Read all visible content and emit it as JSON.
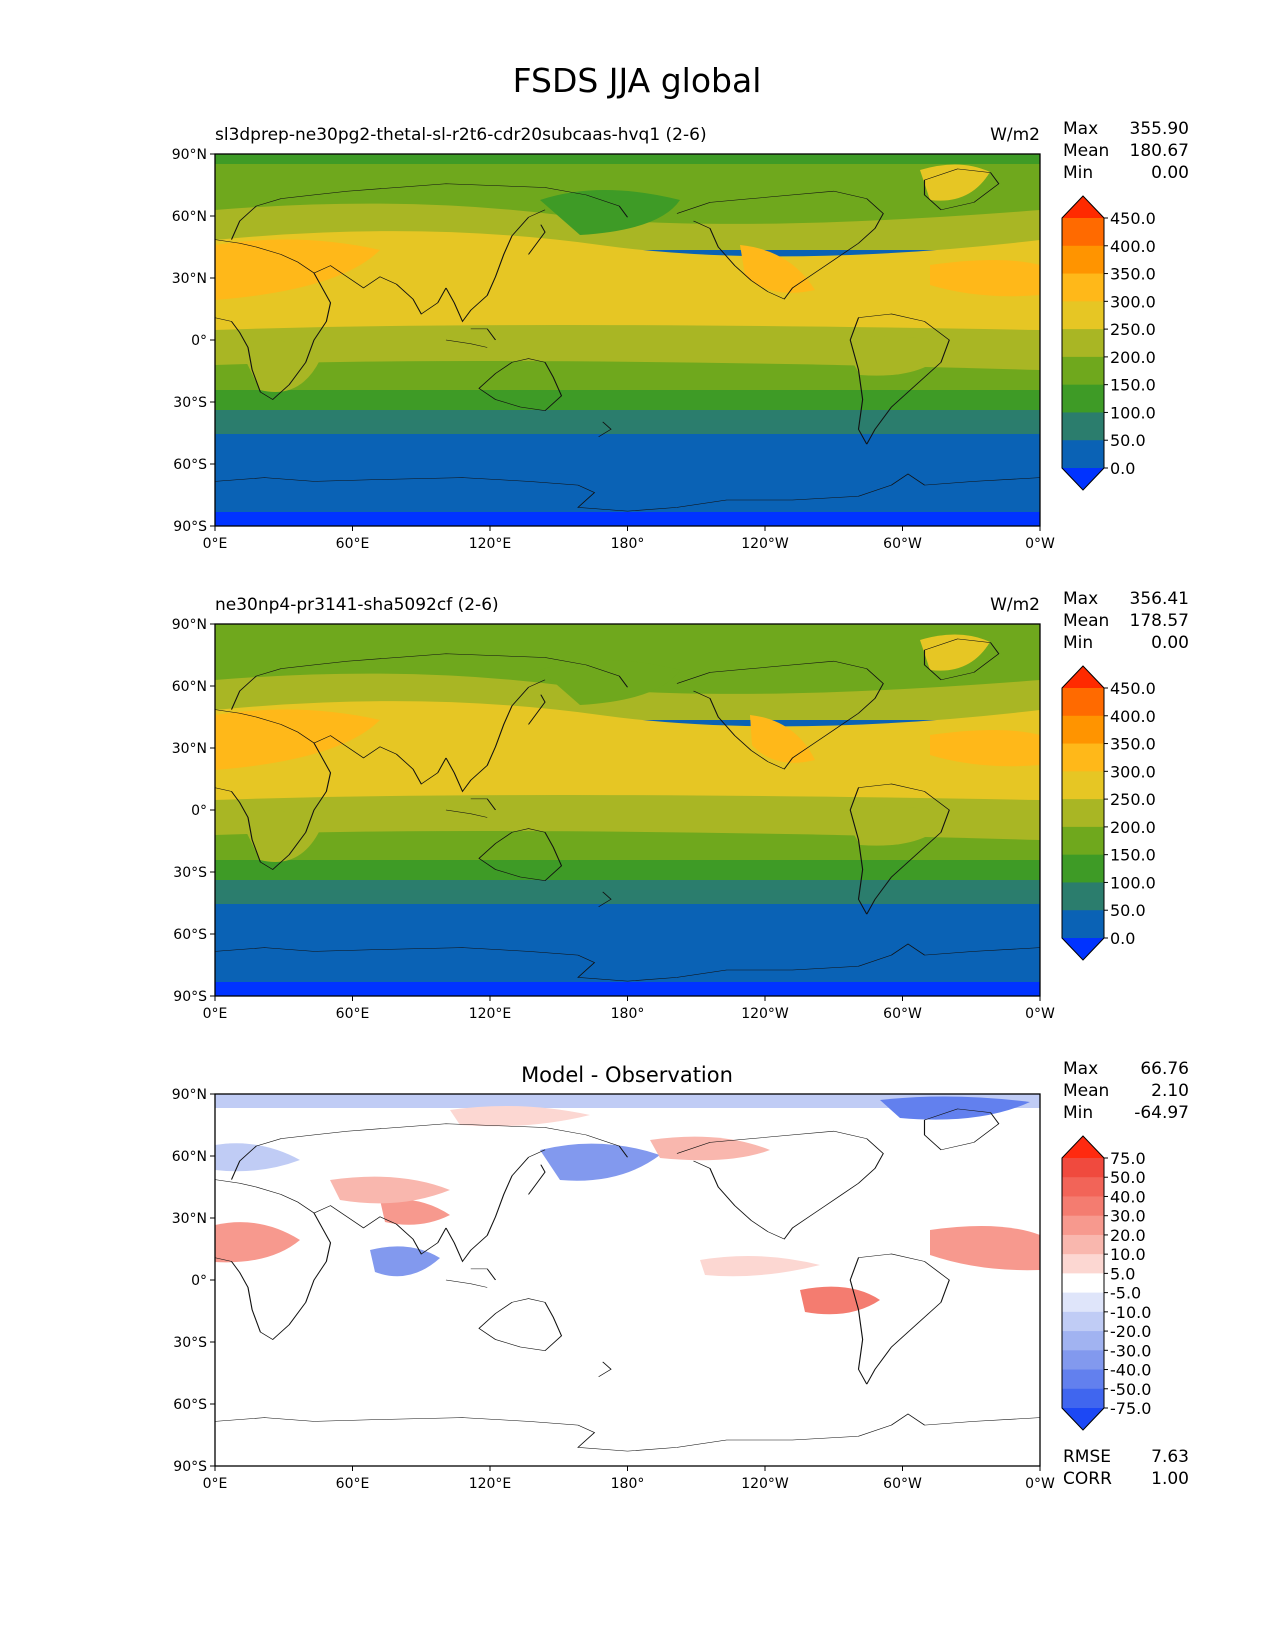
{
  "figure": {
    "title": "FSDS JJA global",
    "lon_ticks": [
      "0°E",
      "60°E",
      "120°E",
      "180°",
      "120°W",
      "60°W",
      "0°W"
    ],
    "lat_ticks": [
      "90°N",
      "60°N",
      "30°N",
      "0°",
      "30°S",
      "60°S",
      "90°S"
    ]
  },
  "panels": [
    {
      "left_title": "sl3dprep-ne30pg2-thetal-sl-r2t6-cdr20subcaas-hvq1 (2-6)",
      "center_title": "",
      "units": "W/m2",
      "stats": {
        "max_label": "Max",
        "max": "355.90",
        "mean_label": "Mean",
        "mean": "180.67",
        "min_label": "Min",
        "min": "0.00"
      },
      "colorbar": {
        "labels": [
          "450.0",
          "400.0",
          "350.0",
          "300.0",
          "250.0",
          "200.0",
          "150.0",
          "100.0",
          "50.0",
          "0.0"
        ],
        "colors": [
          "#ff2a00",
          "#ff6a00",
          "#ff9400",
          "#ffb819",
          "#e6c624",
          "#a9b624",
          "#6fa81d",
          "#3e9b26",
          "#2b7d6d",
          "#0a62b5",
          "#0033ff"
        ]
      }
    },
    {
      "left_title": "ne30np4-pr3141-sha5092cf (2-6)",
      "center_title": "",
      "units": "W/m2",
      "stats": {
        "max_label": "Max",
        "max": "356.41",
        "mean_label": "Mean",
        "mean": "178.57",
        "min_label": "Min",
        "min": "0.00"
      },
      "colorbar": {
        "labels": [
          "450.0",
          "400.0",
          "350.0",
          "300.0",
          "250.0",
          "200.0",
          "150.0",
          "100.0",
          "50.0",
          "0.0"
        ],
        "colors": [
          "#ff2a00",
          "#ff6a00",
          "#ff9400",
          "#ffb819",
          "#e6c624",
          "#a9b624",
          "#6fa81d",
          "#3e9b26",
          "#2b7d6d",
          "#0a62b5",
          "#0033ff"
        ]
      }
    },
    {
      "left_title": "",
      "center_title": "Model - Observation",
      "units": "",
      "stats": {
        "max_label": "Max",
        "max": "66.76",
        "mean_label": "Mean",
        "mean": "2.10",
        "min_label": "Min",
        "min": "-64.97"
      },
      "extra_stats": {
        "rmse_label": "RMSE",
        "rmse": "7.63",
        "corr_label": "CORR",
        "corr": "1.00"
      },
      "colorbar": {
        "labels": [
          "75.0",
          "50.0",
          "40.0",
          "30.0",
          "20.0",
          "10.0",
          "5.0",
          "-5.0",
          "-10.0",
          "-20.0",
          "-30.0",
          "-40.0",
          "-50.0",
          "-75.0"
        ],
        "colors": [
          "#ff2a10",
          "#f04a3e",
          "#f26458",
          "#f47c70",
          "#f7998e",
          "#f9b7ae",
          "#fcd7d2",
          "#ffffff",
          "#dfe5fa",
          "#c0ccf5",
          "#a1b3f1",
          "#8299ee",
          "#6280ee",
          "#4066ef",
          "#1c48f5"
        ]
      }
    }
  ]
}
